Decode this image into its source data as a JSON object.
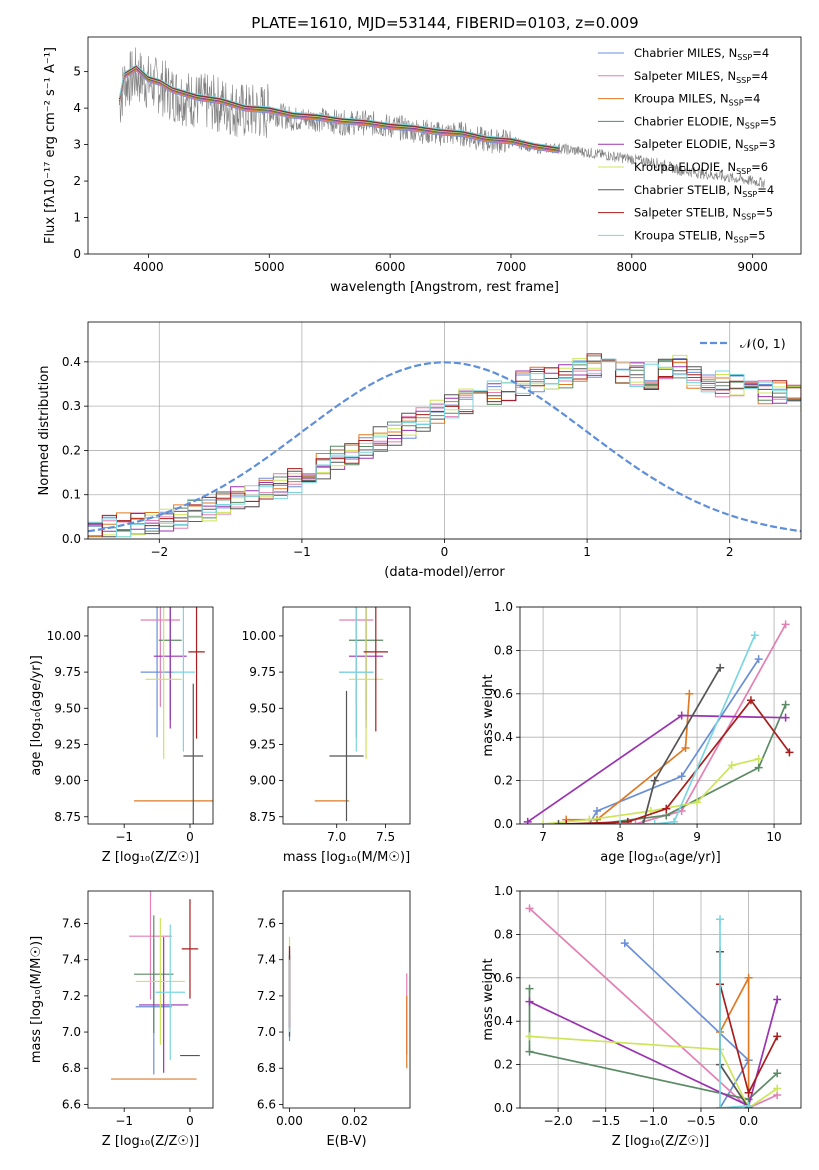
{
  "figure_title": "PLATE=1610, MJD=53144, FIBERID=0103, z=0.009",
  "series_colors": [
    "#6a8fd8",
    "#e27fb3",
    "#df7a24",
    "#5b8a65",
    "#9a32b1",
    "#cde55b",
    "#555555",
    "#a81d1d",
    "#7ad6e0"
  ],
  "chart_data": [
    {
      "id": "spectrum",
      "type": "line",
      "title": "PLATE=1610, MJD=53144, FIBERID=0103, z=0.009",
      "xlabel": "wavelength [Angstrom, rest frame]",
      "ylabel": "Flux [fλ10⁻¹⁷ erg cm⁻² s⁻¹ A⁻¹]",
      "xlim": [
        3500,
        9400
      ],
      "ylim": [
        0,
        5.95
      ],
      "xticks": [
        "4000",
        "5000",
        "6000",
        "7000",
        "8000",
        "9000"
      ],
      "yticks": [
        "0",
        "1",
        "2",
        "3",
        "4",
        "5"
      ],
      "grid": false,
      "legend_position": "top-right",
      "legend": [
        {
          "label": "Chabrier MILES, N",
          "sub": "SSP",
          "suffix": "=4"
        },
        {
          "label": "Salpeter MILES, N",
          "sub": "SSP",
          "suffix": "=4"
        },
        {
          "label": "Kroupa MILES, N",
          "sub": "SSP",
          "suffix": "=4"
        },
        {
          "label": "Chabrier ELODIE, N",
          "sub": "SSP",
          "suffix": "=5"
        },
        {
          "label": "Salpeter ELODIE, N",
          "sub": "SSP",
          "suffix": "=3"
        },
        {
          "label": "Kroupa ELODIE, N",
          "sub": "SSP",
          "suffix": "=6"
        },
        {
          "label": "Chabrier STELIB, N",
          "sub": "SSP",
          "suffix": "=4"
        },
        {
          "label": "Salpeter STELIB, N",
          "sub": "SSP",
          "suffix": "=5"
        },
        {
          "label": "Kroupa STELIB, N",
          "sub": "SSP",
          "suffix": "=5"
        }
      ],
      "data_curve": {
        "name": "data",
        "color": "#808080",
        "x": [
          3760,
          3800,
          3900,
          4000,
          4100,
          4200,
          4300,
          4400,
          4600,
          4800,
          5000,
          5200,
          5400,
          5600,
          5800,
          6000,
          6200,
          6400,
          6600,
          6800,
          7000,
          7200,
          7400,
          7600,
          7800,
          8000,
          8200,
          8400,
          8600,
          8800,
          9000,
          9100
        ],
        "y": [
          4.1,
          4.7,
          4.9,
          4.7,
          4.6,
          4.4,
          4.3,
          4.2,
          4.1,
          3.9,
          3.9,
          3.7,
          3.7,
          3.6,
          3.6,
          3.5,
          3.4,
          3.3,
          3.3,
          3.1,
          3.1,
          2.9,
          2.9,
          2.8,
          2.7,
          2.6,
          2.5,
          2.3,
          2.2,
          2.1,
          2.0,
          1.95
        ]
      },
      "model_curve": {
        "x": [
          3760,
          3800,
          3900,
          4000,
          4100,
          4200,
          4300,
          4400,
          4600,
          4800,
          5000,
          5200,
          5400,
          5600,
          5800,
          6000,
          6200,
          6400,
          6600,
          6800,
          7000,
          7200,
          7400
        ],
        "y": [
          4.2,
          4.9,
          5.1,
          4.8,
          4.7,
          4.5,
          4.4,
          4.3,
          4.2,
          4.0,
          3.95,
          3.8,
          3.75,
          3.65,
          3.6,
          3.5,
          3.45,
          3.35,
          3.3,
          3.15,
          3.1,
          2.95,
          2.85
        ]
      }
    },
    {
      "id": "residual_hist",
      "type": "bar",
      "xlabel": "(data-model)/error",
      "ylabel": "Normed distribution",
      "xlim": [
        -2.5,
        2.5
      ],
      "ylim": [
        0,
        0.49
      ],
      "xticks": [
        "−2",
        "−1",
        "0",
        "1",
        "2"
      ],
      "yticks": [
        "0.0",
        "0.1",
        "0.2",
        "0.3",
        "0.4"
      ],
      "grid": true,
      "legend_position": "top-right",
      "legend_label": "𝒩(0, 1)",
      "bin_width": 0.1,
      "bin_start": -2.5,
      "base_values": [
        0.02,
        0.025,
        0.03,
        0.035,
        0.04,
        0.045,
        0.05,
        0.06,
        0.07,
        0.08,
        0.09,
        0.1,
        0.11,
        0.12,
        0.13,
        0.15,
        0.165,
        0.18,
        0.195,
        0.21,
        0.225,
        0.24,
        0.255,
        0.27,
        0.29,
        0.3,
        0.31,
        0.32,
        0.33,
        0.34,
        0.35,
        0.36,
        0.365,
        0.37,
        0.38,
        0.39,
        0.385,
        0.375,
        0.37,
        0.365,
        0.385,
        0.39,
        0.37,
        0.36,
        0.35,
        0.345,
        0.34,
        0.33,
        0.33,
        0.32,
        0.31,
        0.3,
        0.3,
        0.285,
        0.27,
        0.26,
        0.25,
        0.24,
        0.22,
        0.2,
        0.19,
        0.17,
        0.16,
        0.15,
        0.14,
        0.13,
        0.12,
        0.11,
        0.1,
        0.09,
        0.08,
        0.07,
        0.06,
        0.05,
        0.045,
        0.04,
        0.035,
        0.03,
        0.03,
        0.025,
        0.02,
        0.02,
        0.02,
        0.02,
        0.02,
        0.02,
        0.02,
        0.02,
        0.02,
        0.02,
        0.02,
        0.02,
        0.02,
        0.02,
        0.02,
        0.02,
        0.02,
        0.02,
        0.02,
        0.02
      ]
    },
    {
      "id": "age_vs_Z",
      "type": "scatter",
      "xlabel": "Z [log₁₀(Z/Z☉)]",
      "ylabel": "age  [log₁₀(age/yr)]",
      "xlim": [
        -1.55,
        0.35
      ],
      "ylim": [
        8.7,
        10.2
      ],
      "xticks": [
        "−1",
        "0"
      ],
      "yticks": [
        "8.75",
        "9.00",
        "9.25",
        "9.50",
        "9.75",
        "10.00"
      ],
      "grid": false,
      "points": [
        {
          "x": -0.5,
          "y": 9.75,
          "xerr": 0.5,
          "yerr": 0.9
        },
        {
          "x": -0.45,
          "y": 10.11,
          "xerr": 0.6,
          "yerr": 1.2
        },
        {
          "x": -0.2,
          "y": 8.86,
          "xerr": 1.3,
          "yerr": 0.0
        },
        {
          "x": -0.3,
          "y": 9.97,
          "xerr": 0.35,
          "yerr": 1.1
        },
        {
          "x": -0.3,
          "y": 9.86,
          "xerr": 0.5,
          "yerr": 1.0
        },
        {
          "x": -0.4,
          "y": 9.7,
          "xerr": 0.55,
          "yerr": 1.1
        },
        {
          "x": 0.05,
          "y": 9.17,
          "xerr": 0.3,
          "yerr": 1.0
        },
        {
          "x": 0.1,
          "y": 9.89,
          "xerr": 0.25,
          "yerr": 1.2
        },
        {
          "x": -0.1,
          "y": 9.75,
          "xerr": 0.35,
          "yerr": 1.1
        }
      ]
    },
    {
      "id": "age_vs_mass",
      "type": "scatter",
      "xlabel": "mass [log₁₀(M/M☉)]",
      "ylabel": "",
      "xlim": [
        6.45,
        7.75
      ],
      "ylim": [
        8.7,
        10.2
      ],
      "xticks": [
        "7.0",
        "7.5"
      ],
      "yticks": [
        "8.75",
        "9.00",
        "9.25",
        "9.50",
        "9.75",
        "10.00"
      ],
      "grid": false,
      "points": [
        {
          "x": 7.2,
          "y": 9.75,
          "xerr": 0.35,
          "yerr": 0.9
        },
        {
          "x": 7.2,
          "y": 10.11,
          "xerr": 0.35,
          "yerr": 1.2
        },
        {
          "x": 6.95,
          "y": 8.86,
          "xerr": 0.35,
          "yerr": 0.0
        },
        {
          "x": 7.3,
          "y": 9.97,
          "xerr": 0.35,
          "yerr": 1.1
        },
        {
          "x": 7.3,
          "y": 9.86,
          "xerr": 0.35,
          "yerr": 1.0
        },
        {
          "x": 7.3,
          "y": 9.7,
          "xerr": 0.35,
          "yerr": 1.1
        },
        {
          "x": 7.1,
          "y": 9.17,
          "xerr": 0.35,
          "yerr": 0.9
        },
        {
          "x": 7.4,
          "y": 9.89,
          "xerr": 0.25,
          "yerr": 1.1
        },
        {
          "x": 7.2,
          "y": 9.75,
          "xerr": 0.35,
          "yerr": 1.1
        }
      ]
    },
    {
      "id": "massweight_vs_age",
      "type": "line",
      "xlabel": "age  [log₁₀(age/yr)]",
      "ylabel": "mass weight",
      "xlim": [
        6.7,
        10.35
      ],
      "ylim": [
        0,
        1.0
      ],
      "xticks": [
        "7",
        "8",
        "9",
        "10"
      ],
      "yticks": [
        "0.0",
        "0.2",
        "0.4",
        "0.6",
        "0.8",
        "1.0"
      ],
      "grid": true,
      "series": [
        {
          "x": [
            7.6,
            7.7,
            8.8,
            9.8
          ],
          "y": [
            0.0,
            0.06,
            0.22,
            0.76
          ]
        },
        {
          "x": [
            8.2,
            8.6,
            8.8,
            10.15
          ],
          "y": [
            0.0,
            0.04,
            0.06,
            0.92
          ]
        },
        {
          "x": [
            7.3,
            7.7,
            8.85,
            8.9
          ],
          "y": [
            0.02,
            0.02,
            0.35,
            0.6
          ]
        },
        {
          "x": [
            7.7,
            8.6,
            9.8,
            10.15
          ],
          "y": [
            0.0,
            0.04,
            0.26,
            0.55
          ]
        },
        {
          "x": [
            6.8,
            8.8,
            10.15
          ],
          "y": [
            0.01,
            0.5,
            0.49
          ]
        },
        {
          "x": [
            7.0,
            7.6,
            8.4,
            9.0,
            9.45,
            9.8
          ],
          "y": [
            0.0,
            0.02,
            0.06,
            0.1,
            0.27,
            0.3
          ]
        },
        {
          "x": [
            7.2,
            8.3,
            8.45,
            9.3
          ],
          "y": [
            0.0,
            0.0,
            0.2,
            0.72
          ]
        },
        {
          "x": [
            7.3,
            8.1,
            8.6,
            9.7,
            10.2
          ],
          "y": [
            0.0,
            0.01,
            0.07,
            0.57,
            0.33
          ]
        },
        {
          "x": [
            8.0,
            8.45,
            8.7,
            9.75
          ],
          "y": [
            0.0,
            0.0,
            0.01,
            0.87
          ]
        }
      ]
    },
    {
      "id": "mass_vs_Z",
      "type": "scatter",
      "xlabel": "Z [log₁₀(Z/Z☉)]",
      "ylabel": "mass [log₁₀(M/M☉)]",
      "xlim": [
        -1.55,
        0.35
      ],
      "ylim": [
        6.58,
        7.78
      ],
      "xticks": [
        "−1",
        "0"
      ],
      "yticks": [
        "6.6",
        "6.8",
        "7.0",
        "7.2",
        "7.4",
        "7.6"
      ],
      "grid": false,
      "points": [
        {
          "x": -0.55,
          "y": 7.14,
          "xerr": 0.55,
          "yerr": 0.75
        },
        {
          "x": -0.6,
          "y": 7.53,
          "xerr": 0.65,
          "yerr": 0.7
        },
        {
          "x": -0.55,
          "y": 6.74,
          "xerr": 1.3,
          "yerr": 0.0
        },
        {
          "x": -0.55,
          "y": 7.32,
          "xerr": 0.6,
          "yerr": 0.65
        },
        {
          "x": -0.4,
          "y": 7.15,
          "xerr": 0.75,
          "yerr": 0.75
        },
        {
          "x": -0.45,
          "y": 7.28,
          "xerr": 0.75,
          "yerr": 0.7
        },
        {
          "x": 0.0,
          "y": 6.87,
          "xerr": 0.3,
          "yerr": 0.0
        },
        {
          "x": 0.0,
          "y": 7.46,
          "xerr": 0.25,
          "yerr": 0.55
        },
        {
          "x": -0.3,
          "y": 7.22,
          "xerr": 0.45,
          "yerr": 0.75
        }
      ]
    },
    {
      "id": "mass_vs_ebv",
      "type": "scatter",
      "xlabel": "E(B-V)",
      "ylabel": "",
      "xlim": [
        -0.002,
        0.037
      ],
      "ylim": [
        6.58,
        7.78
      ],
      "xticks": [
        "0.00",
        "0.02"
      ],
      "yticks": [
        "6.6",
        "6.8",
        "7.0",
        "7.2",
        "7.4",
        "7.6"
      ],
      "grid": false,
      "points": [
        {
          "x": 0.0,
          "y": 7.2,
          "xerr": 0,
          "yerr": 0.5
        },
        {
          "x": 0.036,
          "y": 7.1,
          "xerr": 0,
          "yerr": 0.45
        },
        {
          "x": 0.036,
          "y": 7.0,
          "xerr": 0,
          "yerr": 0.4
        },
        {
          "x": 0.0,
          "y": 7.2,
          "xerr": 0,
          "yerr": 0.45
        },
        {
          "x": 0.0,
          "y": 7.25,
          "xerr": 0,
          "yerr": 0.45
        },
        {
          "x": 0.0,
          "y": 7.3,
          "xerr": 0,
          "yerr": 0.45
        },
        {
          "x": 0.0,
          "y": 7.2,
          "xerr": 0,
          "yerr": 0.45
        },
        {
          "x": 0.0,
          "y": 7.25,
          "xerr": 0,
          "yerr": 0.45
        },
        {
          "x": 0.0,
          "y": 7.2,
          "xerr": 0,
          "yerr": 0.4
        }
      ]
    },
    {
      "id": "massweight_vs_Z",
      "type": "line",
      "xlabel": "Z [log₁₀(Z/Z☉)]",
      "ylabel": "mass weight",
      "xlim": [
        -2.4,
        0.55
      ],
      "ylim": [
        0,
        1.0
      ],
      "xticks": [
        "−2.0",
        "−1.5",
        "−1.0",
        "−0.5",
        "0.0"
      ],
      "yticks": [
        "0.0",
        "0.2",
        "0.4",
        "0.6",
        "0.8",
        "1.0"
      ],
      "grid": true,
      "series": [
        {
          "x": [
            -1.3,
            0.0,
            -0.3
          ],
          "y": [
            0.76,
            0.22,
            0.0
          ]
        },
        {
          "x": [
            -2.3,
            0.0,
            0.3
          ],
          "y": [
            0.92,
            0.0,
            0.06
          ]
        },
        {
          "x": [
            -0.3,
            0.0,
            0.0
          ],
          "y": [
            0.35,
            0.6,
            0.0
          ]
        },
        {
          "x": [
            -2.3,
            -2.3,
            0.0,
            0.3
          ],
          "y": [
            0.55,
            0.26,
            0.04,
            0.16
          ]
        },
        {
          "x": [
            -2.3,
            0.0,
            0.3
          ],
          "y": [
            0.49,
            0.01,
            0.5
          ]
        },
        {
          "x": [
            -2.3,
            -0.3,
            0.0,
            0.3
          ],
          "y": [
            0.33,
            0.27,
            0.0,
            0.09
          ]
        },
        {
          "x": [
            -0.3,
            -0.3,
            0.0
          ],
          "y": [
            0.72,
            0.2,
            0.0
          ]
        },
        {
          "x": [
            -0.3,
            0.0,
            0.3
          ],
          "y": [
            0.57,
            0.07,
            0.33
          ]
        },
        {
          "x": [
            -0.3,
            -0.3,
            0.0
          ],
          "y": [
            0.87,
            0.0,
            0.01
          ]
        }
      ]
    }
  ]
}
